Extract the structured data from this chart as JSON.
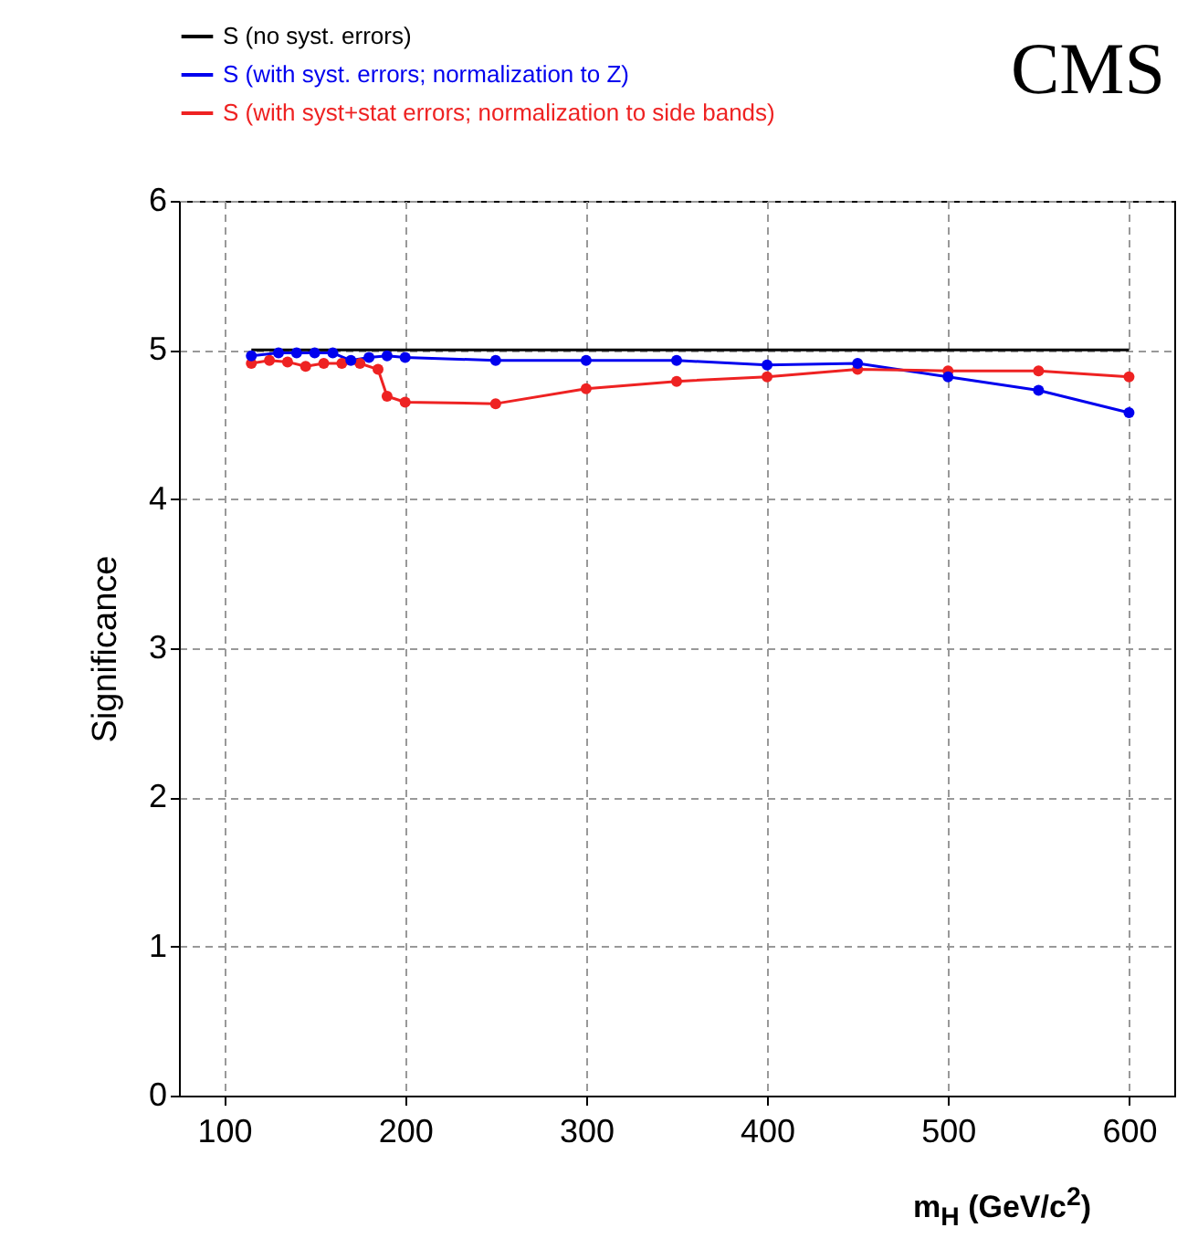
{
  "chart_data": {
    "type": "line",
    "xlabel": "m$_{H}$ (GeV/c$^{2}$)",
    "ylabel": "Significance",
    "annotations": [
      "CMS"
    ],
    "xlim": [
      75,
      625
    ],
    "xticks": [
      100,
      200,
      300,
      400,
      500,
      600
    ],
    "ylim": [
      0,
      6
    ],
    "yticks": [
      0,
      1,
      2,
      3,
      4,
      5,
      6
    ],
    "grid": true,
    "legend": "top left",
    "line_style": "solid",
    "series": [
      {
        "name": "S (no syst. errors)",
        "color": "#000000",
        "marker": "none",
        "x": [
          115,
          600
        ],
        "values": [
          5,
          5
        ]
      },
      {
        "name": "S (with syst. errors; normalization to Z)",
        "color": "#0000ee",
        "marker": "circle",
        "x": [
          115,
          130,
          140,
          150,
          160,
          170,
          180,
          190,
          200,
          250,
          300,
          350,
          400,
          450,
          500,
          550,
          600
        ],
        "values": [
          4.96,
          4.98,
          4.98,
          4.98,
          4.98,
          4.93,
          4.95,
          4.96,
          4.95,
          4.93,
          4.93,
          4.93,
          4.9,
          4.91,
          4.82,
          4.73,
          4.58
        ]
      },
      {
        "name": "S (with syst+stat errors; normalization to side bands)",
        "color": "#ee2222",
        "marker": "circle",
        "x": [
          115,
          125,
          135,
          145,
          155,
          165,
          175,
          185,
          190,
          200,
          250,
          300,
          350,
          400,
          450,
          500,
          550,
          600
        ],
        "values": [
          4.91,
          4.93,
          4.92,
          4.89,
          4.91,
          4.91,
          4.91,
          4.87,
          4.69,
          4.65,
          4.64,
          4.74,
          4.79,
          4.82,
          4.87,
          4.86,
          4.86,
          4.82
        ]
      }
    ]
  }
}
